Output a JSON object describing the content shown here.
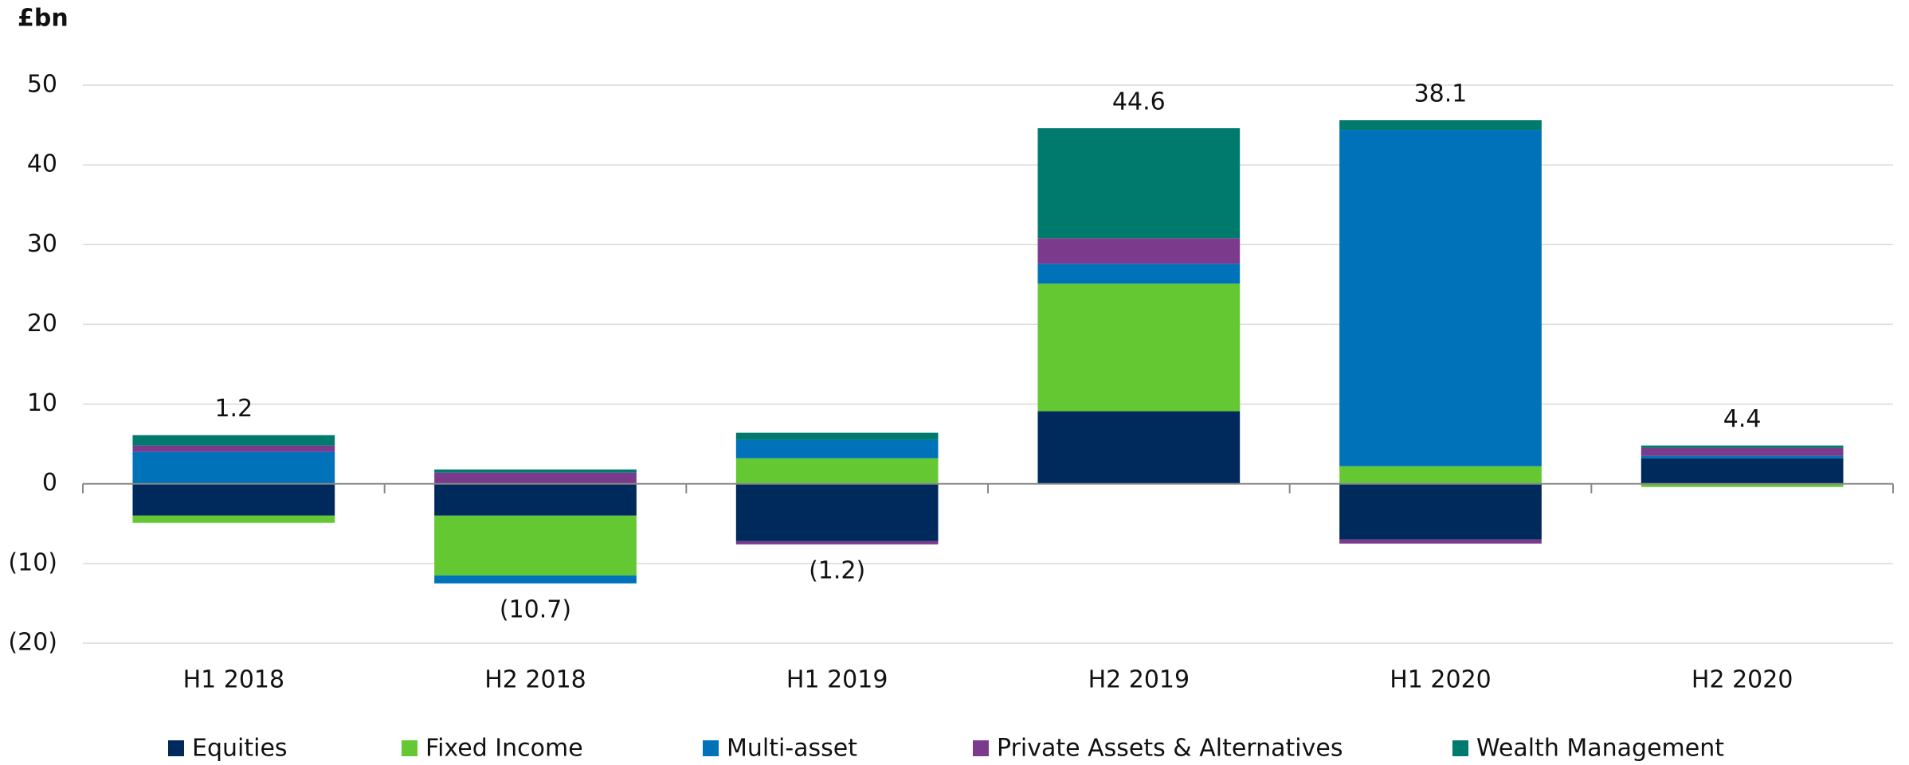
{
  "chart_data": {
    "type": "stacked_bar",
    "y_axis_label": "£bn",
    "categories": [
      "H1 2018",
      "H2 2018",
      "H1 2019",
      "H2 2019",
      "H1 2020",
      "H2 2020"
    ],
    "series": [
      {
        "name": "Equities",
        "color": "#002a5c",
        "values": [
          -4.0,
          -4.0,
          -7.2,
          9.1,
          -7.0,
          3.2
        ]
      },
      {
        "name": "Fixed Income",
        "color": "#64c832",
        "values": [
          -0.9,
          -7.5,
          3.2,
          16.0,
          2.2,
          -0.4
        ]
      },
      {
        "name": "Multi-asset",
        "color": "#0072b9",
        "values": [
          4.0,
          -1.0,
          2.3,
          2.5,
          42.2,
          0.3
        ]
      },
      {
        "name": "Private Assets & Alternatives",
        "color": "#7b3a8b",
        "values": [
          0.8,
          1.4,
          -0.4,
          3.2,
          -0.5,
          1.0
        ]
      },
      {
        "name": "Wealth Management",
        "color": "#007a6c",
        "values": [
          1.3,
          0.4,
          0.9,
          13.8,
          1.2,
          0.3
        ]
      }
    ],
    "totals": {
      "values": [
        1.2,
        -10.7,
        -1.2,
        44.6,
        38.1,
        4.4
      ],
      "value_labels": [
        "1.2",
        "(10.7)",
        "(1.2)",
        "44.6",
        "38.1",
        "4.4"
      ]
    },
    "ylim": [
      -20,
      50
    ],
    "yticks": [
      {
        "value": -20,
        "label": "(20)"
      },
      {
        "value": -10,
        "label": "(10)"
      },
      0,
      10,
      20,
      30,
      40,
      50
    ],
    "grid": true,
    "legend": "bottom"
  }
}
